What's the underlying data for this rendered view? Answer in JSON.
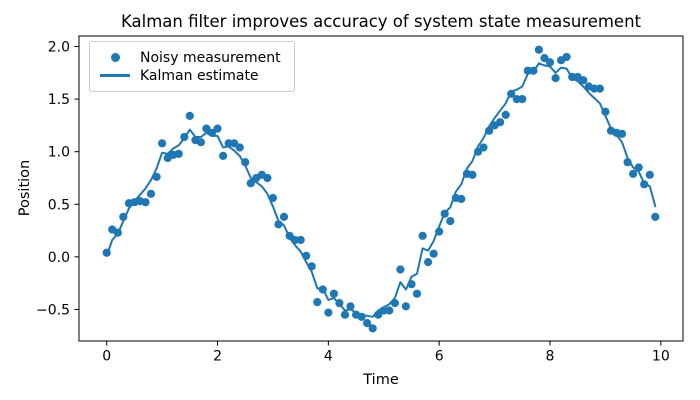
{
  "chart_data": {
    "type": "scatter+line",
    "title": "Kalman filter improves accuracy of system state measurement",
    "xlabel": "Time",
    "ylabel": "Position",
    "color": "#1f77b4",
    "background": "#ffffff",
    "grid": false,
    "xlim": [
      -0.5,
      10.4
    ],
    "ylim": [
      -0.8,
      2.1
    ],
    "xticks": [
      0,
      2,
      4,
      6,
      8,
      10
    ],
    "xtick_labels": [
      "0",
      "2",
      "4",
      "6",
      "8",
      "10"
    ],
    "yticks": [
      -0.5,
      0,
      0.5,
      1,
      1.5,
      2
    ],
    "ytick_labels": [
      "−0.5",
      "0.0",
      "0.5",
      "1.0",
      "1.5",
      "2.0"
    ],
    "legend": {
      "position": "upper left",
      "items": [
        {
          "label": "Noisy measurement",
          "marker": "dot"
        },
        {
          "label": "Kalman estimate",
          "marker": "line"
        }
      ]
    },
    "x": [
      0.0,
      0.1,
      0.2,
      0.3,
      0.4,
      0.5,
      0.6,
      0.7,
      0.8,
      0.9,
      1.0,
      1.1,
      1.2,
      1.3,
      1.4,
      1.5,
      1.6,
      1.7,
      1.8,
      1.9,
      2.0,
      2.1,
      2.2,
      2.3,
      2.4,
      2.5,
      2.6,
      2.7,
      2.8,
      2.9,
      3.0,
      3.1,
      3.2,
      3.3,
      3.4,
      3.5,
      3.6,
      3.7,
      3.8,
      3.9,
      4.0,
      4.1,
      4.2,
      4.3,
      4.4,
      4.5,
      4.6,
      4.7,
      4.8,
      4.9,
      5.0,
      5.1,
      5.2,
      5.3,
      5.4,
      5.5,
      5.6,
      5.7,
      5.8,
      5.9,
      6.0,
      6.1,
      6.2,
      6.3,
      6.4,
      6.5,
      6.6,
      6.7,
      6.8,
      6.9,
      7.0,
      7.1,
      7.2,
      7.3,
      7.4,
      7.5,
      7.6,
      7.7,
      7.8,
      7.9,
      8.0,
      8.1,
      8.2,
      8.3,
      8.4,
      8.5,
      8.6,
      8.7,
      8.8,
      8.9,
      9.0,
      9.1,
      9.2,
      9.3,
      9.4,
      9.5,
      9.6,
      9.7,
      9.8,
      9.9
    ],
    "series": [
      {
        "name": "Noisy measurement",
        "type": "scatter",
        "values": [
          0.04,
          0.26,
          0.23,
          0.38,
          0.51,
          0.52,
          0.53,
          0.52,
          0.6,
          0.76,
          1.08,
          0.94,
          0.97,
          0.98,
          1.14,
          1.34,
          1.11,
          1.09,
          1.22,
          1.18,
          1.22,
          0.96,
          1.08,
          1.08,
          1.04,
          0.9,
          0.7,
          0.75,
          0.78,
          0.75,
          0.56,
          0.31,
          0.38,
          0.2,
          0.16,
          0.16,
          0.01,
          -0.09,
          -0.43,
          -0.31,
          -0.53,
          -0.35,
          -0.44,
          -0.55,
          -0.47,
          -0.55,
          -0.57,
          -0.63,
          -0.68,
          -0.55,
          -0.51,
          -0.51,
          -0.44,
          -0.12,
          -0.47,
          -0.26,
          -0.35,
          0.2,
          -0.05,
          0.03,
          0.24,
          0.41,
          0.34,
          0.56,
          0.55,
          0.79,
          0.78,
          1.0,
          1.04,
          1.2,
          1.25,
          1.28,
          1.35,
          1.55,
          1.5,
          1.5,
          1.77,
          1.77,
          1.97,
          1.89,
          1.85,
          1.7,
          1.87,
          1.9,
          1.71,
          1.71,
          1.68,
          1.62,
          1.6,
          1.6,
          1.38,
          1.2,
          1.18,
          1.17,
          0.9,
          0.79,
          0.85,
          0.69,
          0.78,
          0.38
        ]
      },
      {
        "name": "Kalman estimate",
        "type": "line",
        "values": [
          0.01,
          0.16,
          0.22,
          0.34,
          0.46,
          0.53,
          0.59,
          0.65,
          0.73,
          0.84,
          0.99,
          0.98,
          1.03,
          1.06,
          1.13,
          1.21,
          1.14,
          1.14,
          1.18,
          1.15,
          1.15,
          1.04,
          1.05,
          1.01,
          0.96,
          0.87,
          0.75,
          0.71,
          0.67,
          0.6,
          0.48,
          0.34,
          0.3,
          0.18,
          0.11,
          0.05,
          -0.05,
          -0.14,
          -0.3,
          -0.3,
          -0.41,
          -0.39,
          -0.45,
          -0.51,
          -0.5,
          -0.53,
          -0.55,
          -0.56,
          -0.57,
          -0.51,
          -0.48,
          -0.45,
          -0.39,
          -0.24,
          -0.31,
          -0.19,
          -0.16,
          0.08,
          0.06,
          0.15,
          0.29,
          0.42,
          0.47,
          0.62,
          0.69,
          0.84,
          0.91,
          1.05,
          1.13,
          1.24,
          1.32,
          1.39,
          1.46,
          1.57,
          1.59,
          1.62,
          1.74,
          1.76,
          1.84,
          1.82,
          1.81,
          1.75,
          1.8,
          1.79,
          1.7,
          1.67,
          1.62,
          1.56,
          1.51,
          1.46,
          1.34,
          1.22,
          1.16,
          1.09,
          0.94,
          0.85,
          0.81,
          0.7,
          0.67,
          0.48
        ]
      }
    ]
  }
}
